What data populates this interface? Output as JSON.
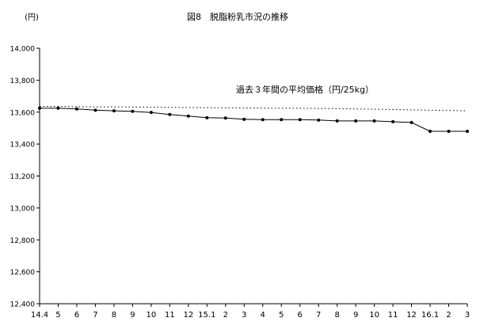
{
  "chart_data": {
    "type": "line",
    "title": "図8　脱脂粉乳市況の推移",
    "ylabel": "(円)",
    "xlabel": "",
    "ylim": [
      12400,
      14000
    ],
    "yticks": [
      "12,400",
      "12,600",
      "12,800",
      "13,000",
      "13,200",
      "13,400",
      "13,600",
      "13,800",
      "14,000"
    ],
    "categories": [
      "14.4",
      "5",
      "6",
      "7",
      "8",
      "9",
      "10",
      "11",
      "12",
      "15.1",
      "2",
      "3",
      "4",
      "5",
      "6",
      "7",
      "8",
      "9",
      "10",
      "11",
      "12",
      "16.1",
      "2",
      "3"
    ],
    "grid": false,
    "series": [
      {
        "name": "",
        "style": "solid-with-markers",
        "color": "#000000",
        "values": [
          13625,
          13625,
          13620,
          13612,
          13608,
          13605,
          13598,
          13585,
          13575,
          13565,
          13563,
          13555,
          13553,
          13553,
          13553,
          13550,
          13545,
          13545,
          13545,
          13540,
          13535,
          13480,
          13480,
          13480
        ]
      },
      {
        "name": "",
        "style": "dotted",
        "color": "#000000",
        "values": [
          13636,
          13636,
          13634,
          13633,
          13633,
          13632,
          13631,
          13630,
          13629,
          13628,
          13627,
          13626,
          13625,
          13624,
          13624,
          13623,
          13622,
          13620,
          13618,
          13616,
          13614,
          13612,
          13610,
          13608
        ]
      }
    ],
    "annotation": "過去３年間の平均価格（円/25kg）"
  }
}
